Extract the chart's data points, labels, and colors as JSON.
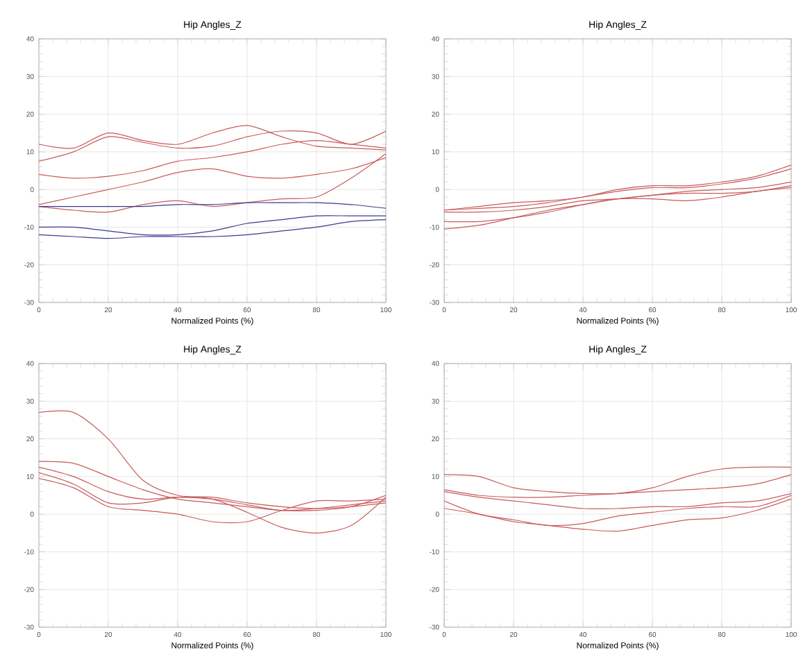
{
  "chart_data": [
    {
      "type": "line",
      "title": "Hip Angles_Z",
      "xlabel": "Normalized Points (%)",
      "x": [
        0,
        10,
        20,
        30,
        40,
        50,
        60,
        70,
        80,
        90,
        100
      ],
      "xlim": [
        0,
        100
      ],
      "xticks": [
        0,
        20,
        40,
        60,
        80,
        100
      ],
      "ylim": [
        -30,
        40
      ],
      "yticks": [
        -30,
        -20,
        -10,
        0,
        10,
        20,
        30,
        40
      ],
      "grid": true,
      "marker": "none",
      "line_style": "solid",
      "series": [
        {
          "color": "#c85a5a",
          "values": [
            12,
            11,
            15,
            13,
            12,
            15,
            17,
            14,
            11.5,
            11,
            10.5
          ]
        },
        {
          "color": "#c85a5a",
          "values": [
            7.5,
            10,
            14,
            12.5,
            11,
            11.5,
            14,
            15.5,
            15,
            12,
            15.5
          ]
        },
        {
          "color": "#c85a5a",
          "values": [
            4,
            3,
            3.5,
            5,
            7.5,
            8.5,
            10,
            12,
            13,
            12,
            11
          ]
        },
        {
          "color": "#c85a5a",
          "values": [
            -4,
            -2,
            0,
            2,
            4.5,
            5.5,
            3.5,
            3,
            4,
            5.5,
            8.5
          ]
        },
        {
          "color": "#c85a5a",
          "values": [
            -4.5,
            -5.5,
            -6,
            -4,
            -3,
            -4.5,
            -3.5,
            -2.5,
            -2,
            3,
            9.5
          ]
        },
        {
          "color": "#3a3a90",
          "values": [
            -4.5,
            -4.5,
            -4.5,
            -4.5,
            -4,
            -4,
            -3.5,
            -3.5,
            -3.5,
            -4,
            -5
          ]
        },
        {
          "color": "#3a3a90",
          "values": [
            -10,
            -10,
            -11,
            -12,
            -12,
            -11,
            -9,
            -8,
            -7,
            -7,
            -7
          ]
        },
        {
          "color": "#3a3a90",
          "values": [
            -12,
            -12.5,
            -13,
            -12.5,
            -12.5,
            -12.5,
            -12,
            -11,
            -10,
            -8.5,
            -8
          ]
        }
      ]
    },
    {
      "type": "line",
      "title": "Hip Angles_Z",
      "xlabel": "Normalized Points (%)",
      "x": [
        0,
        10,
        20,
        30,
        40,
        50,
        60,
        70,
        80,
        90,
        100
      ],
      "xlim": [
        0,
        100
      ],
      "xticks": [
        0,
        20,
        40,
        60,
        80,
        100
      ],
      "ylim": [
        -30,
        40
      ],
      "yticks": [
        -30,
        -20,
        -10,
        0,
        10,
        20,
        30,
        40
      ],
      "grid": true,
      "marker": "none",
      "line_style": "solid",
      "series": [
        {
          "color": "#c85a5a",
          "values": [
            -5.5,
            -4.5,
            -3.5,
            -3,
            -2,
            0,
            1,
            1,
            2,
            3.5,
            6.5
          ]
        },
        {
          "color": "#c85a5a",
          "values": [
            -5.5,
            -5,
            -4.5,
            -3.5,
            -2,
            -0.5,
            0.5,
            0.5,
            1.5,
            3,
            5.5
          ]
        },
        {
          "color": "#c85a5a",
          "values": [
            -6,
            -6,
            -5.5,
            -4.5,
            -3,
            -2.5,
            -1.5,
            -0.5,
            0,
            0.5,
            2
          ]
        },
        {
          "color": "#c85a5a",
          "values": [
            -8.5,
            -8.5,
            -7.5,
            -6,
            -4,
            -2.5,
            -2.5,
            -3,
            -2,
            -0.5,
            0.5
          ]
        },
        {
          "color": "#c85a5a",
          "values": [
            -10.5,
            -9.5,
            -7.5,
            -5.5,
            -4,
            -2.5,
            -1.5,
            -1,
            -1,
            -0.5,
            1
          ]
        }
      ]
    },
    {
      "type": "line",
      "title": "Hip Angles_Z",
      "xlabel": "Normalized Points (%)",
      "x": [
        0,
        10,
        20,
        30,
        40,
        50,
        60,
        70,
        80,
        90,
        100
      ],
      "xlim": [
        0,
        100
      ],
      "xticks": [
        0,
        20,
        40,
        60,
        80,
        100
      ],
      "ylim": [
        -30,
        40
      ],
      "yticks": [
        -30,
        -20,
        -10,
        0,
        10,
        20,
        30,
        40
      ],
      "grid": true,
      "marker": "none",
      "line_style": "solid",
      "series": [
        {
          "color": "#c85a5a",
          "values": [
            27,
            27,
            20,
            9,
            5,
            4.5,
            3,
            2,
            1.5,
            2,
            3
          ]
        },
        {
          "color": "#c85a5a",
          "values": [
            14,
            13.5,
            10,
            6.5,
            4,
            3,
            2,
            1,
            1,
            2,
            5
          ]
        },
        {
          "color": "#c85a5a",
          "values": [
            12.5,
            10,
            6,
            4,
            4.5,
            4,
            2.5,
            1,
            1.5,
            2.5,
            3.5
          ]
        },
        {
          "color": "#c85a5a",
          "values": [
            11,
            8,
            3,
            3,
            4.5,
            4,
            0.5,
            -3.5,
            -5,
            -3,
            4.5
          ]
        },
        {
          "color": "#c85a5a",
          "values": [
            9.5,
            7,
            2,
            1,
            0,
            -2,
            -2,
            1,
            3.5,
            3.5,
            4
          ]
        }
      ]
    },
    {
      "type": "line",
      "title": "Hip Angles_Z",
      "xlabel": "Normalized Points (%)",
      "x": [
        0,
        10,
        20,
        30,
        40,
        50,
        60,
        70,
        80,
        90,
        100
      ],
      "xlim": [
        0,
        100
      ],
      "xticks": [
        0,
        20,
        40,
        60,
        80,
        100
      ],
      "ylim": [
        -30,
        40
      ],
      "yticks": [
        -30,
        -20,
        -10,
        0,
        10,
        20,
        30,
        40
      ],
      "grid": true,
      "marker": "none",
      "line_style": "solid",
      "series": [
        {
          "color": "#c85a5a",
          "values": [
            10.5,
            10,
            7,
            6,
            5.5,
            5.5,
            7,
            10,
            12,
            12.5,
            12.5
          ]
        },
        {
          "color": "#c85a5a",
          "values": [
            6.5,
            5,
            4.5,
            4.5,
            5,
            5.5,
            6,
            6.5,
            7,
            8,
            10.5
          ]
        },
        {
          "color": "#c85a5a",
          "values": [
            6,
            4.5,
            3.5,
            2.5,
            1.5,
            1.5,
            2,
            2,
            3,
            3.5,
            5.5
          ]
        },
        {
          "color": "#c85a5a",
          "values": [
            3.5,
            0,
            -1.5,
            -3,
            -2.5,
            -0.5,
            0.5,
            1.5,
            2,
            2,
            5
          ]
        },
        {
          "color": "#c85a5a",
          "values": [
            1.5,
            0,
            -2,
            -3,
            -4,
            -4.5,
            -3,
            -1.5,
            -1,
            1,
            4
          ]
        }
      ]
    }
  ]
}
